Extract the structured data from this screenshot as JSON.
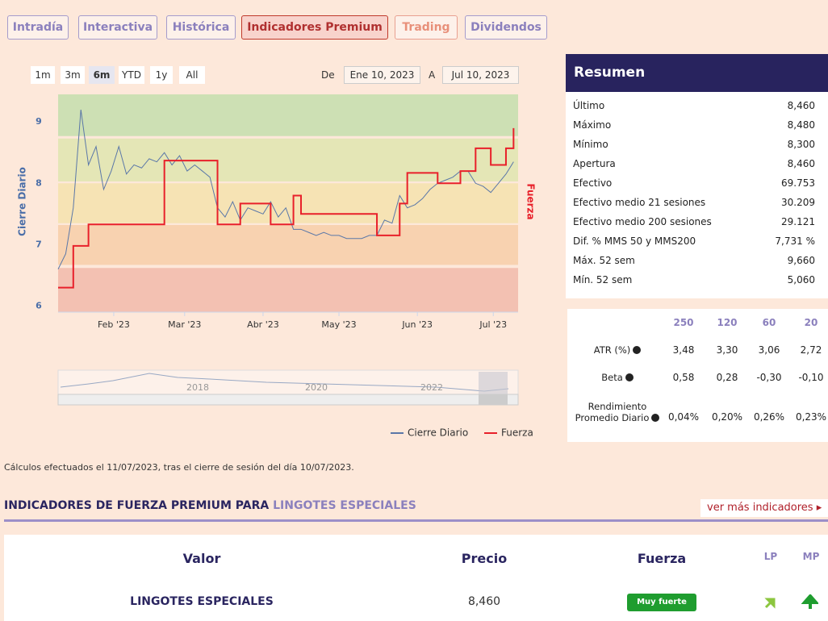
{
  "tabs": [
    "Intradía",
    "Interactiva",
    "Histórica",
    "Indicadores Premium",
    "Trading",
    "Dividendos"
  ],
  "range_buttons": [
    "1m",
    "3m",
    "6m",
    "YTD",
    "1y",
    "All"
  ],
  "date_range": {
    "from_label": "De",
    "from": "Ene 10, 2023",
    "to_label": "A",
    "to": "Jul 10, 2023"
  },
  "chart_data": {
    "type": "line",
    "y_label": "Cierre Diario",
    "y2_label": "Fuerza",
    "xlim": [
      0,
      60.6
    ],
    "xticks": [
      {
        "value": 7.33,
        "label": "Feb '23"
      },
      {
        "value": 16.67,
        "label": "Mar '23"
      },
      {
        "value": 27,
        "label": "Abr '23"
      },
      {
        "value": 37,
        "label": "May '23"
      },
      {
        "value": 47.33,
        "label": "Jun '23"
      },
      {
        "value": 57.33,
        "label": "Jul '23"
      }
    ],
    "ylim": [
      5.9,
      9.45
    ],
    "yticks": [
      6,
      7,
      8,
      9
    ],
    "bands": [
      {
        "from": 8.77,
        "to": 9.45,
        "color": "#cde0b4"
      },
      {
        "from": 8.03,
        "to": 8.73,
        "color": "#e4e6b6"
      },
      {
        "from": 7.35,
        "to": 8.0,
        "color": "#f6e3b4"
      },
      {
        "from": 6.67,
        "to": 7.32,
        "color": "#f8d2b0"
      },
      {
        "from": 5.9,
        "to": 6.62,
        "color": "#f3c1b2"
      }
    ],
    "series": [
      {
        "name": "Cierre Diario",
        "color": "#5a77a8",
        "step": false,
        "values": [
          6.6,
          6.85,
          7.6,
          9.2,
          8.3,
          8.6,
          7.9,
          8.2,
          8.6,
          8.15,
          8.3,
          8.25,
          8.4,
          8.35,
          8.5,
          8.3,
          8.45,
          8.2,
          8.3,
          8.2,
          8.1,
          7.6,
          7.45,
          7.7,
          7.4,
          7.6,
          7.55,
          7.5,
          7.7,
          7.45,
          7.6,
          7.25,
          7.25,
          7.2,
          7.15,
          7.2,
          7.15,
          7.15,
          7.1,
          7.1,
          7.1,
          7.15,
          7.15,
          7.4,
          7.35,
          7.8,
          7.6,
          7.65,
          7.75,
          7.9,
          8.0,
          8.05,
          8.1,
          8.2,
          8.2,
          8.0,
          7.95,
          7.85,
          8.0,
          8.15,
          8.35
        ]
      },
      {
        "name": "Fuerza",
        "color": "#e8202a",
        "step": true,
        "values": [
          6.3,
          6.3,
          6.98,
          6.98,
          7.33,
          7.33,
          7.33,
          7.33,
          7.33,
          7.33,
          7.33,
          7.33,
          7.33,
          7.33,
          8.37,
          8.37,
          8.37,
          8.37,
          8.37,
          8.37,
          8.37,
          7.33,
          7.33,
          7.33,
          7.67,
          7.67,
          7.67,
          7.67,
          7.33,
          7.33,
          7.33,
          7.8,
          7.5,
          7.5,
          7.5,
          7.5,
          7.5,
          7.5,
          7.5,
          7.5,
          7.5,
          7.5,
          7.15,
          7.15,
          7.15,
          7.67,
          8.17,
          8.17,
          8.17,
          8.17,
          8.0,
          8.0,
          8.0,
          8.2,
          8.2,
          8.57,
          8.57,
          8.3,
          8.3,
          8.57,
          8.9
        ]
      }
    ]
  },
  "navigator": {
    "labels": [
      "2018",
      "2020",
      "2022"
    ]
  },
  "summary": {
    "title": "Resumen",
    "rows": [
      [
        "Último",
        "8,460"
      ],
      [
        "Máximo",
        "8,480"
      ],
      [
        "Mínimo",
        "8,300"
      ],
      [
        "Apertura",
        "8,460"
      ],
      [
        "Efectivo",
        "69.753"
      ],
      [
        "Efectivo medio 21 sesiones",
        "30.209"
      ],
      [
        "Efectivo medio 200 sesiones",
        "29.121"
      ],
      [
        "Dif. % MMS 50 y MMS200",
        "7,731 %"
      ],
      [
        "Máx. 52 sem",
        "9,660"
      ],
      [
        "Mín. 52 sem",
        "5,060"
      ]
    ]
  },
  "stats": {
    "columns": [
      "250",
      "120",
      "60",
      "20"
    ],
    "rows": [
      {
        "label": "ATR (%)",
        "values": [
          "3,48",
          "3,30",
          "3,06",
          "2,72"
        ]
      },
      {
        "label": "Beta",
        "values": [
          "0,58",
          "0,28",
          "-0,30",
          "-0,10"
        ]
      },
      {
        "label": "Rendimiento Promedio Diario",
        "values": [
          "0,04%",
          "0,20%",
          "0,26%",
          "0,23%"
        ]
      }
    ]
  },
  "note": "Cálculos efectuados el 11/07/2023, tras el cierre de sesión del día 10/07/2023.",
  "section": {
    "title": "INDICADORES DE FUERZA PREMIUM PARA",
    "highlight": "LINGOTES ESPECIALES",
    "link": "ver más indicadores"
  },
  "table": {
    "headers": [
      "Valor",
      "Precio",
      "Fuerza",
      "LP",
      "MP"
    ],
    "rows": [
      [
        "LINGOTES ESPECIALES",
        "8,460",
        "Muy fuerte"
      ]
    ]
  }
}
